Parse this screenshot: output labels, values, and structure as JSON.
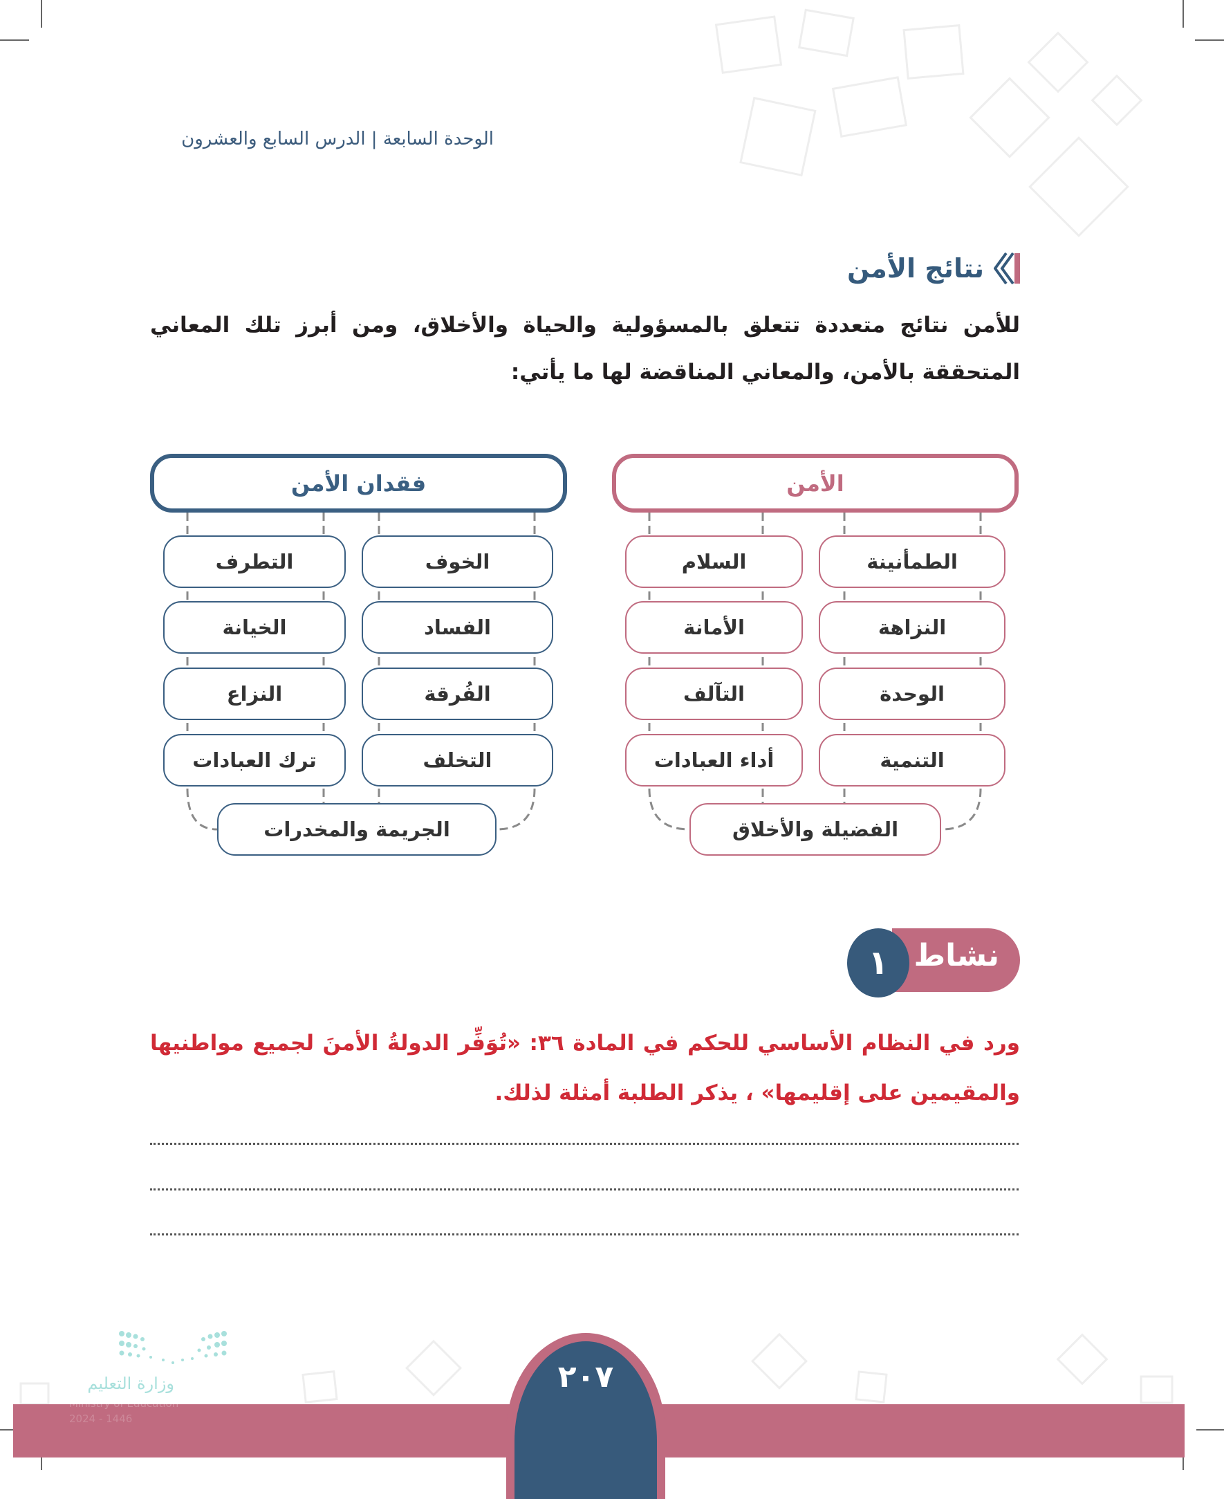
{
  "header": {
    "breadcrumb": "الوحدة السابعة | الدرس السابع والعشرون"
  },
  "section": {
    "title": "نتائج الأمن",
    "paragraph": "للأمن نتائج متعددة تتعلق بالمسؤولية والحياة والأخلاق، ومن أبرز تلك المعاني المتحققة بالأمن، والمعاني المناقضة لها ما يأتي:"
  },
  "diagram": {
    "security": {
      "title": "الأمن",
      "items": [
        "الطمأنينة",
        "السلام",
        "النزاهة",
        "الأمانة",
        "الوحدة",
        "التآلف",
        "التنمية",
        "أداء العبادات"
      ],
      "bottom": "الفضيلة والأخلاق",
      "color": "#c06b80"
    },
    "insecurity": {
      "title": "فقدان الأمن",
      "items": [
        "الخوف",
        "التطرف",
        "الفساد",
        "الخيانة",
        "الفُرقة",
        "النزاع",
        "التخلف",
        "ترك العبادات"
      ],
      "bottom": "الجريمة والمخدرات",
      "color": "#3a5f82"
    }
  },
  "activity": {
    "label": "نشاط",
    "number": "١",
    "text": "ورد في النظام الأساسي للحكم في المادة ٣٦: «تُوَفِّر الدولةُ الأمنَ لجميع مواطنيها والمقيمين على إقليمها» ، يذكر الطلبة أمثلة لذلك."
  },
  "answer_lines": 3,
  "footer": {
    "page_number": "٢٠٧",
    "logo_ar": "وزارة التعليم",
    "logo_en": "Ministry of Education",
    "logo_year": "2024 - 1446",
    "band_color": "#c06b80",
    "badge_color": "#375a7b"
  }
}
